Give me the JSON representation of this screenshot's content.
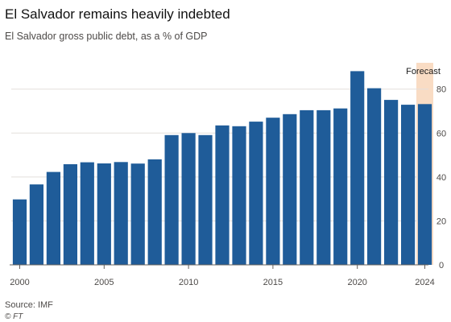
{
  "header": {
    "title": "El Salvador remains heavily indebted",
    "subtitle": "El Salvador gross public debt, as a % of GDP"
  },
  "footer": {
    "source": "Source: IMF",
    "credit": "© FT"
  },
  "colors": {
    "bar": "#1f5c99",
    "forecast_band": "#f9dcc4",
    "grid": "#e3dfdc",
    "baseline": "#66605c"
  },
  "chart_data": {
    "type": "bar",
    "x": [
      2000,
      2001,
      2002,
      2003,
      2004,
      2005,
      2006,
      2007,
      2008,
      2009,
      2010,
      2011,
      2012,
      2013,
      2014,
      2015,
      2016,
      2017,
      2018,
      2019,
      2020,
      2021,
      2022,
      2023,
      2024
    ],
    "values": [
      29.8,
      36.6,
      42.3,
      45.8,
      46.7,
      46.2,
      46.8,
      46.1,
      48.0,
      59.1,
      60.0,
      59.1,
      63.5,
      63.1,
      65.2,
      67.0,
      68.6,
      70.4,
      70.4,
      71.2,
      88.2,
      80.4,
      75.1,
      72.9,
      73.2
    ],
    "xticks": [
      2000,
      2005,
      2010,
      2015,
      2020,
      2024
    ],
    "yticks": [
      0,
      20,
      40,
      60,
      80
    ],
    "ylim": [
      0,
      92
    ],
    "y_axis_side": "right",
    "grid": true,
    "forecast": {
      "label": "Forecast",
      "years": [
        2024
      ]
    }
  }
}
